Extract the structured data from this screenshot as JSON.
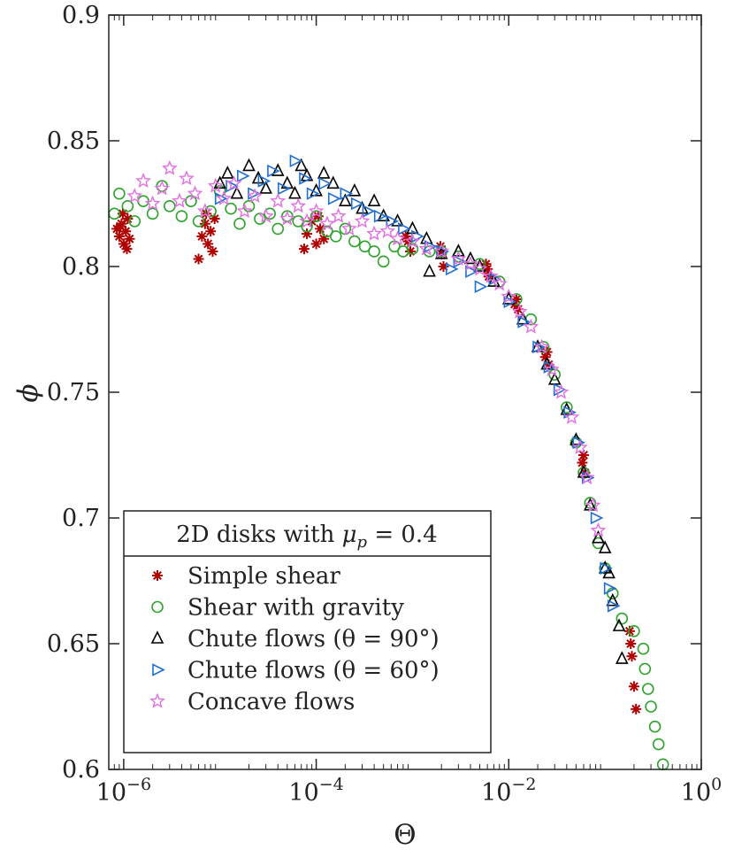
{
  "chart_data": {
    "type": "scatter",
    "title": "",
    "xlabel": "Θ",
    "ylabel": "ϕ",
    "xscale": "log",
    "xlim": [
      7e-07,
      1
    ],
    "ylim": [
      0.6,
      0.9
    ],
    "x_ticks": [
      {
        "value": 1e-06,
        "base": "10",
        "exp": "−6"
      },
      {
        "value": 0.0001,
        "base": "10",
        "exp": "−4"
      },
      {
        "value": 0.01,
        "base": "10",
        "exp": "−2"
      },
      {
        "value": 1,
        "base": "10",
        "exp": "0"
      }
    ],
    "y_ticks": [
      {
        "value": 0.6,
        "label": "0.6"
      },
      {
        "value": 0.65,
        "label": "0.65"
      },
      {
        "value": 0.7,
        "label": "0.7"
      },
      {
        "value": 0.75,
        "label": "0.75"
      },
      {
        "value": 0.8,
        "label": "0.8"
      },
      {
        "value": 0.85,
        "label": "0.85"
      },
      {
        "value": 0.9,
        "label": "0.9"
      }
    ],
    "legend": {
      "placement": "bottom-left",
      "title_prefix": "2D disks with ",
      "title_math": "μ",
      "title_sub": "p",
      "title_suffix": " = 0.4"
    },
    "series": [
      {
        "name": "Simple shear",
        "marker": "asterisk",
        "color": "#b00000",
        "points": [
          [
            9e-07,
            0.812
          ],
          [
            9.5e-07,
            0.817
          ],
          [
            1e-06,
            0.809
          ],
          [
            1.05e-06,
            0.814
          ],
          [
            1.1e-06,
            0.819
          ],
          [
            8.5e-07,
            0.815
          ],
          [
            1.15e-06,
            0.811
          ],
          [
            9.8e-07,
            0.821
          ],
          [
            1.08e-06,
            0.807
          ],
          [
            9.2e-07,
            0.816
          ],
          [
            6.5e-06,
            0.812
          ],
          [
            7e-06,
            0.817
          ],
          [
            7.5e-06,
            0.809
          ],
          [
            8e-06,
            0.814
          ],
          [
            8.8e-06,
            0.819
          ],
          [
            6e-06,
            0.803
          ],
          [
            7.2e-06,
            0.821
          ],
          [
            8.4e-06,
            0.806
          ],
          [
            8e-05,
            0.813
          ],
          [
            9e-05,
            0.818
          ],
          [
            0.0001,
            0.809
          ],
          [
            0.00011,
            0.815
          ],
          [
            0.00012,
            0.811
          ],
          [
            7.5e-05,
            0.807
          ],
          [
            0.000105,
            0.82
          ],
          [
            0.0009,
            0.81
          ],
          [
            0.00095,
            0.806
          ],
          [
            0.00085,
            0.812
          ],
          [
            0.002,
            0.805
          ],
          [
            0.0021,
            0.8
          ],
          [
            0.00195,
            0.808
          ],
          [
            0.006,
            0.799
          ],
          [
            0.0062,
            0.796
          ],
          [
            0.0058,
            0.801
          ],
          [
            0.012,
            0.787
          ],
          [
            0.0125,
            0.783
          ],
          [
            0.0115,
            0.785
          ],
          [
            0.025,
            0.766
          ],
          [
            0.026,
            0.761
          ],
          [
            0.024,
            0.764
          ],
          [
            0.06,
            0.725
          ],
          [
            0.062,
            0.718
          ],
          [
            0.058,
            0.722
          ],
          [
            0.18,
            0.655
          ],
          [
            0.19,
            0.645
          ],
          [
            0.2,
            0.633
          ],
          [
            0.21,
            0.624
          ],
          [
            0.185,
            0.65
          ]
        ]
      },
      {
        "name": "Shear with gravity",
        "marker": "circle",
        "color": "#2ca42c",
        "points": [
          [
            8e-07,
            0.821
          ],
          [
            9e-07,
            0.829
          ],
          [
            1.1e-06,
            0.824
          ],
          [
            1.3e-06,
            0.818
          ],
          [
            1.6e-06,
            0.826
          ],
          [
            2e-06,
            0.821
          ],
          [
            2.5e-06,
            0.832
          ],
          [
            3e-06,
            0.824
          ],
          [
            4e-06,
            0.82
          ],
          [
            5e-06,
            0.826
          ],
          [
            6e-06,
            0.818
          ],
          [
            8e-06,
            0.822
          ],
          [
            1e-05,
            0.83
          ],
          [
            1.3e-05,
            0.823
          ],
          [
            1.6e-05,
            0.817
          ],
          [
            2e-05,
            0.824
          ],
          [
            2.6e-05,
            0.819
          ],
          [
            3.3e-05,
            0.821
          ],
          [
            4e-05,
            0.815
          ],
          [
            5e-05,
            0.82
          ],
          [
            6.5e-05,
            0.818
          ],
          [
            8e-05,
            0.816
          ],
          [
            0.0001,
            0.82
          ],
          [
            0.00013,
            0.814
          ],
          [
            0.00016,
            0.812
          ],
          [
            0.0002,
            0.815
          ],
          [
            0.00025,
            0.81
          ],
          [
            0.00032,
            0.808
          ],
          [
            0.0004,
            0.806
          ],
          [
            0.0005,
            0.802
          ],
          [
            0.00065,
            0.808
          ],
          [
            0.0008,
            0.806
          ],
          [
            0.001,
            0.807
          ],
          [
            0.0015,
            0.806
          ],
          [
            0.002,
            0.806
          ],
          [
            0.003,
            0.804
          ],
          [
            0.005,
            0.801
          ],
          [
            0.008,
            0.794
          ],
          [
            0.012,
            0.787
          ],
          [
            0.017,
            0.779
          ],
          [
            0.023,
            0.768
          ],
          [
            0.03,
            0.757
          ],
          [
            0.04,
            0.744
          ],
          [
            0.05,
            0.73
          ],
          [
            0.06,
            0.718
          ],
          [
            0.07,
            0.706
          ],
          [
            0.085,
            0.69
          ],
          [
            0.1,
            0.68
          ],
          [
            0.12,
            0.67
          ],
          [
            0.15,
            0.66
          ],
          [
            0.2,
            0.655
          ],
          [
            0.25,
            0.648
          ],
          [
            0.26,
            0.64
          ],
          [
            0.28,
            0.632
          ],
          [
            0.3,
            0.625
          ],
          [
            0.33,
            0.617
          ],
          [
            0.36,
            0.61
          ],
          [
            0.4,
            0.602
          ]
        ]
      },
      {
        "name": "Chute flows (θ = 90°)",
        "marker": "triangle-up",
        "color": "#000000",
        "points": [
          [
            1e-05,
            0.833
          ],
          [
            1.2e-05,
            0.837
          ],
          [
            1.5e-05,
            0.829
          ],
          [
            2e-05,
            0.84
          ],
          [
            2.5e-05,
            0.835
          ],
          [
            3e-05,
            0.831
          ],
          [
            4e-05,
            0.838
          ],
          [
            5e-05,
            0.833
          ],
          [
            6e-05,
            0.829
          ],
          [
            7e-05,
            0.84
          ],
          [
            8e-05,
            0.836
          ],
          [
            0.0001,
            0.83
          ],
          [
            0.00012,
            0.837
          ],
          [
            0.00015,
            0.833
          ],
          [
            0.0002,
            0.826
          ],
          [
            0.00025,
            0.83
          ],
          [
            0.0003,
            0.823
          ],
          [
            0.0004,
            0.826
          ],
          [
            0.0005,
            0.82
          ],
          [
            0.0007,
            0.818
          ],
          [
            0.001,
            0.815
          ],
          [
            0.0014,
            0.811
          ],
          [
            0.002,
            0.805
          ],
          [
            0.0015,
            0.798
          ],
          [
            0.003,
            0.806
          ],
          [
            0.004,
            0.803
          ],
          [
            0.005,
            0.8
          ],
          [
            0.007,
            0.794
          ],
          [
            0.01,
            0.787
          ],
          [
            0.014,
            0.779
          ],
          [
            0.02,
            0.768
          ],
          [
            0.025,
            0.761
          ],
          [
            0.03,
            0.755
          ],
          [
            0.04,
            0.743
          ],
          [
            0.05,
            0.731
          ],
          [
            0.06,
            0.718
          ],
          [
            0.07,
            0.705
          ],
          [
            0.085,
            0.692
          ],
          [
            0.1,
            0.688
          ],
          [
            0.1,
            0.68
          ],
          [
            0.11,
            0.678
          ],
          [
            0.12,
            0.667
          ],
          [
            0.14,
            0.657
          ],
          [
            0.15,
            0.644
          ]
        ]
      },
      {
        "name": "Chute flows (θ = 60°)",
        "marker": "triangle-right",
        "color": "#1f6fd1",
        "points": [
          [
            1e-05,
            0.827
          ],
          [
            1.3e-05,
            0.832
          ],
          [
            1.7e-05,
            0.836
          ],
          [
            2.2e-05,
            0.829
          ],
          [
            2.8e-05,
            0.834
          ],
          [
            3.5e-05,
            0.838
          ],
          [
            4.5e-05,
            0.831
          ],
          [
            6e-05,
            0.842
          ],
          [
            7.5e-05,
            0.835
          ],
          [
            9e-05,
            0.829
          ],
          [
            0.00012,
            0.833
          ],
          [
            0.00015,
            0.827
          ],
          [
            0.0002,
            0.829
          ],
          [
            0.00026,
            0.825
          ],
          [
            0.00034,
            0.822
          ],
          [
            0.00045,
            0.82
          ],
          [
            0.0006,
            0.818
          ],
          [
            0.0008,
            0.815
          ],
          [
            0.0011,
            0.812
          ],
          [
            0.0015,
            0.808
          ],
          [
            0.002,
            0.806
          ],
          [
            0.0025,
            0.799
          ],
          [
            0.003,
            0.802
          ],
          [
            0.004,
            0.798
          ],
          [
            0.005,
            0.792
          ],
          [
            0.007,
            0.795
          ],
          [
            0.01,
            0.786
          ],
          [
            0.014,
            0.778
          ],
          [
            0.02,
            0.768
          ],
          [
            0.026,
            0.76
          ],
          [
            0.033,
            0.751
          ],
          [
            0.042,
            0.742
          ],
          [
            0.052,
            0.73
          ],
          [
            0.065,
            0.716
          ],
          [
            0.08,
            0.7
          ],
          [
            0.1,
            0.68
          ],
          [
            0.11,
            0.672
          ],
          [
            0.12,
            0.665
          ]
        ]
      },
      {
        "name": "Concave flows",
        "marker": "star",
        "color": "#e36ee3",
        "points": [
          [
            1.3e-06,
            0.828
          ],
          [
            1.6e-06,
            0.834
          ],
          [
            2e-06,
            0.825
          ],
          [
            2.5e-06,
            0.831
          ],
          [
            3e-06,
            0.839
          ],
          [
            3.8e-06,
            0.826
          ],
          [
            4.5e-06,
            0.835
          ],
          [
            5.5e-06,
            0.829
          ],
          [
            7e-06,
            0.822
          ],
          [
            9e-06,
            0.832
          ],
          [
            1.1e-05,
            0.827
          ],
          [
            1.4e-05,
            0.833
          ],
          [
            1.8e-05,
            0.822
          ],
          [
            2.3e-05,
            0.828
          ],
          [
            3e-05,
            0.82
          ],
          [
            4e-05,
            0.826
          ],
          [
            5e-05,
            0.819
          ],
          [
            6.5e-05,
            0.824
          ],
          [
            8e-05,
            0.818
          ],
          [
            0.0001,
            0.822
          ],
          [
            0.00013,
            0.817
          ],
          [
            0.00017,
            0.82
          ],
          [
            0.00022,
            0.815
          ],
          [
            0.0003,
            0.818
          ],
          [
            0.0004,
            0.813
          ],
          [
            0.00055,
            0.814
          ],
          [
            0.0007,
            0.811
          ],
          [
            0.001,
            0.81
          ],
          [
            0.0014,
            0.807
          ],
          [
            0.002,
            0.806
          ],
          [
            0.003,
            0.803
          ],
          [
            0.004,
            0.801
          ],
          [
            0.005,
            0.799
          ],
          [
            0.0065,
            0.796
          ],
          [
            0.008,
            0.793
          ],
          [
            0.01,
            0.788
          ],
          [
            0.013,
            0.782
          ],
          [
            0.017,
            0.776
          ],
          [
            0.022,
            0.768
          ],
          [
            0.028,
            0.759
          ],
          [
            0.035,
            0.75
          ],
          [
            0.045,
            0.74
          ],
          [
            0.055,
            0.728
          ],
          [
            0.065,
            0.716
          ],
          [
            0.075,
            0.705
          ],
          [
            0.085,
            0.695
          ]
        ]
      }
    ]
  }
}
